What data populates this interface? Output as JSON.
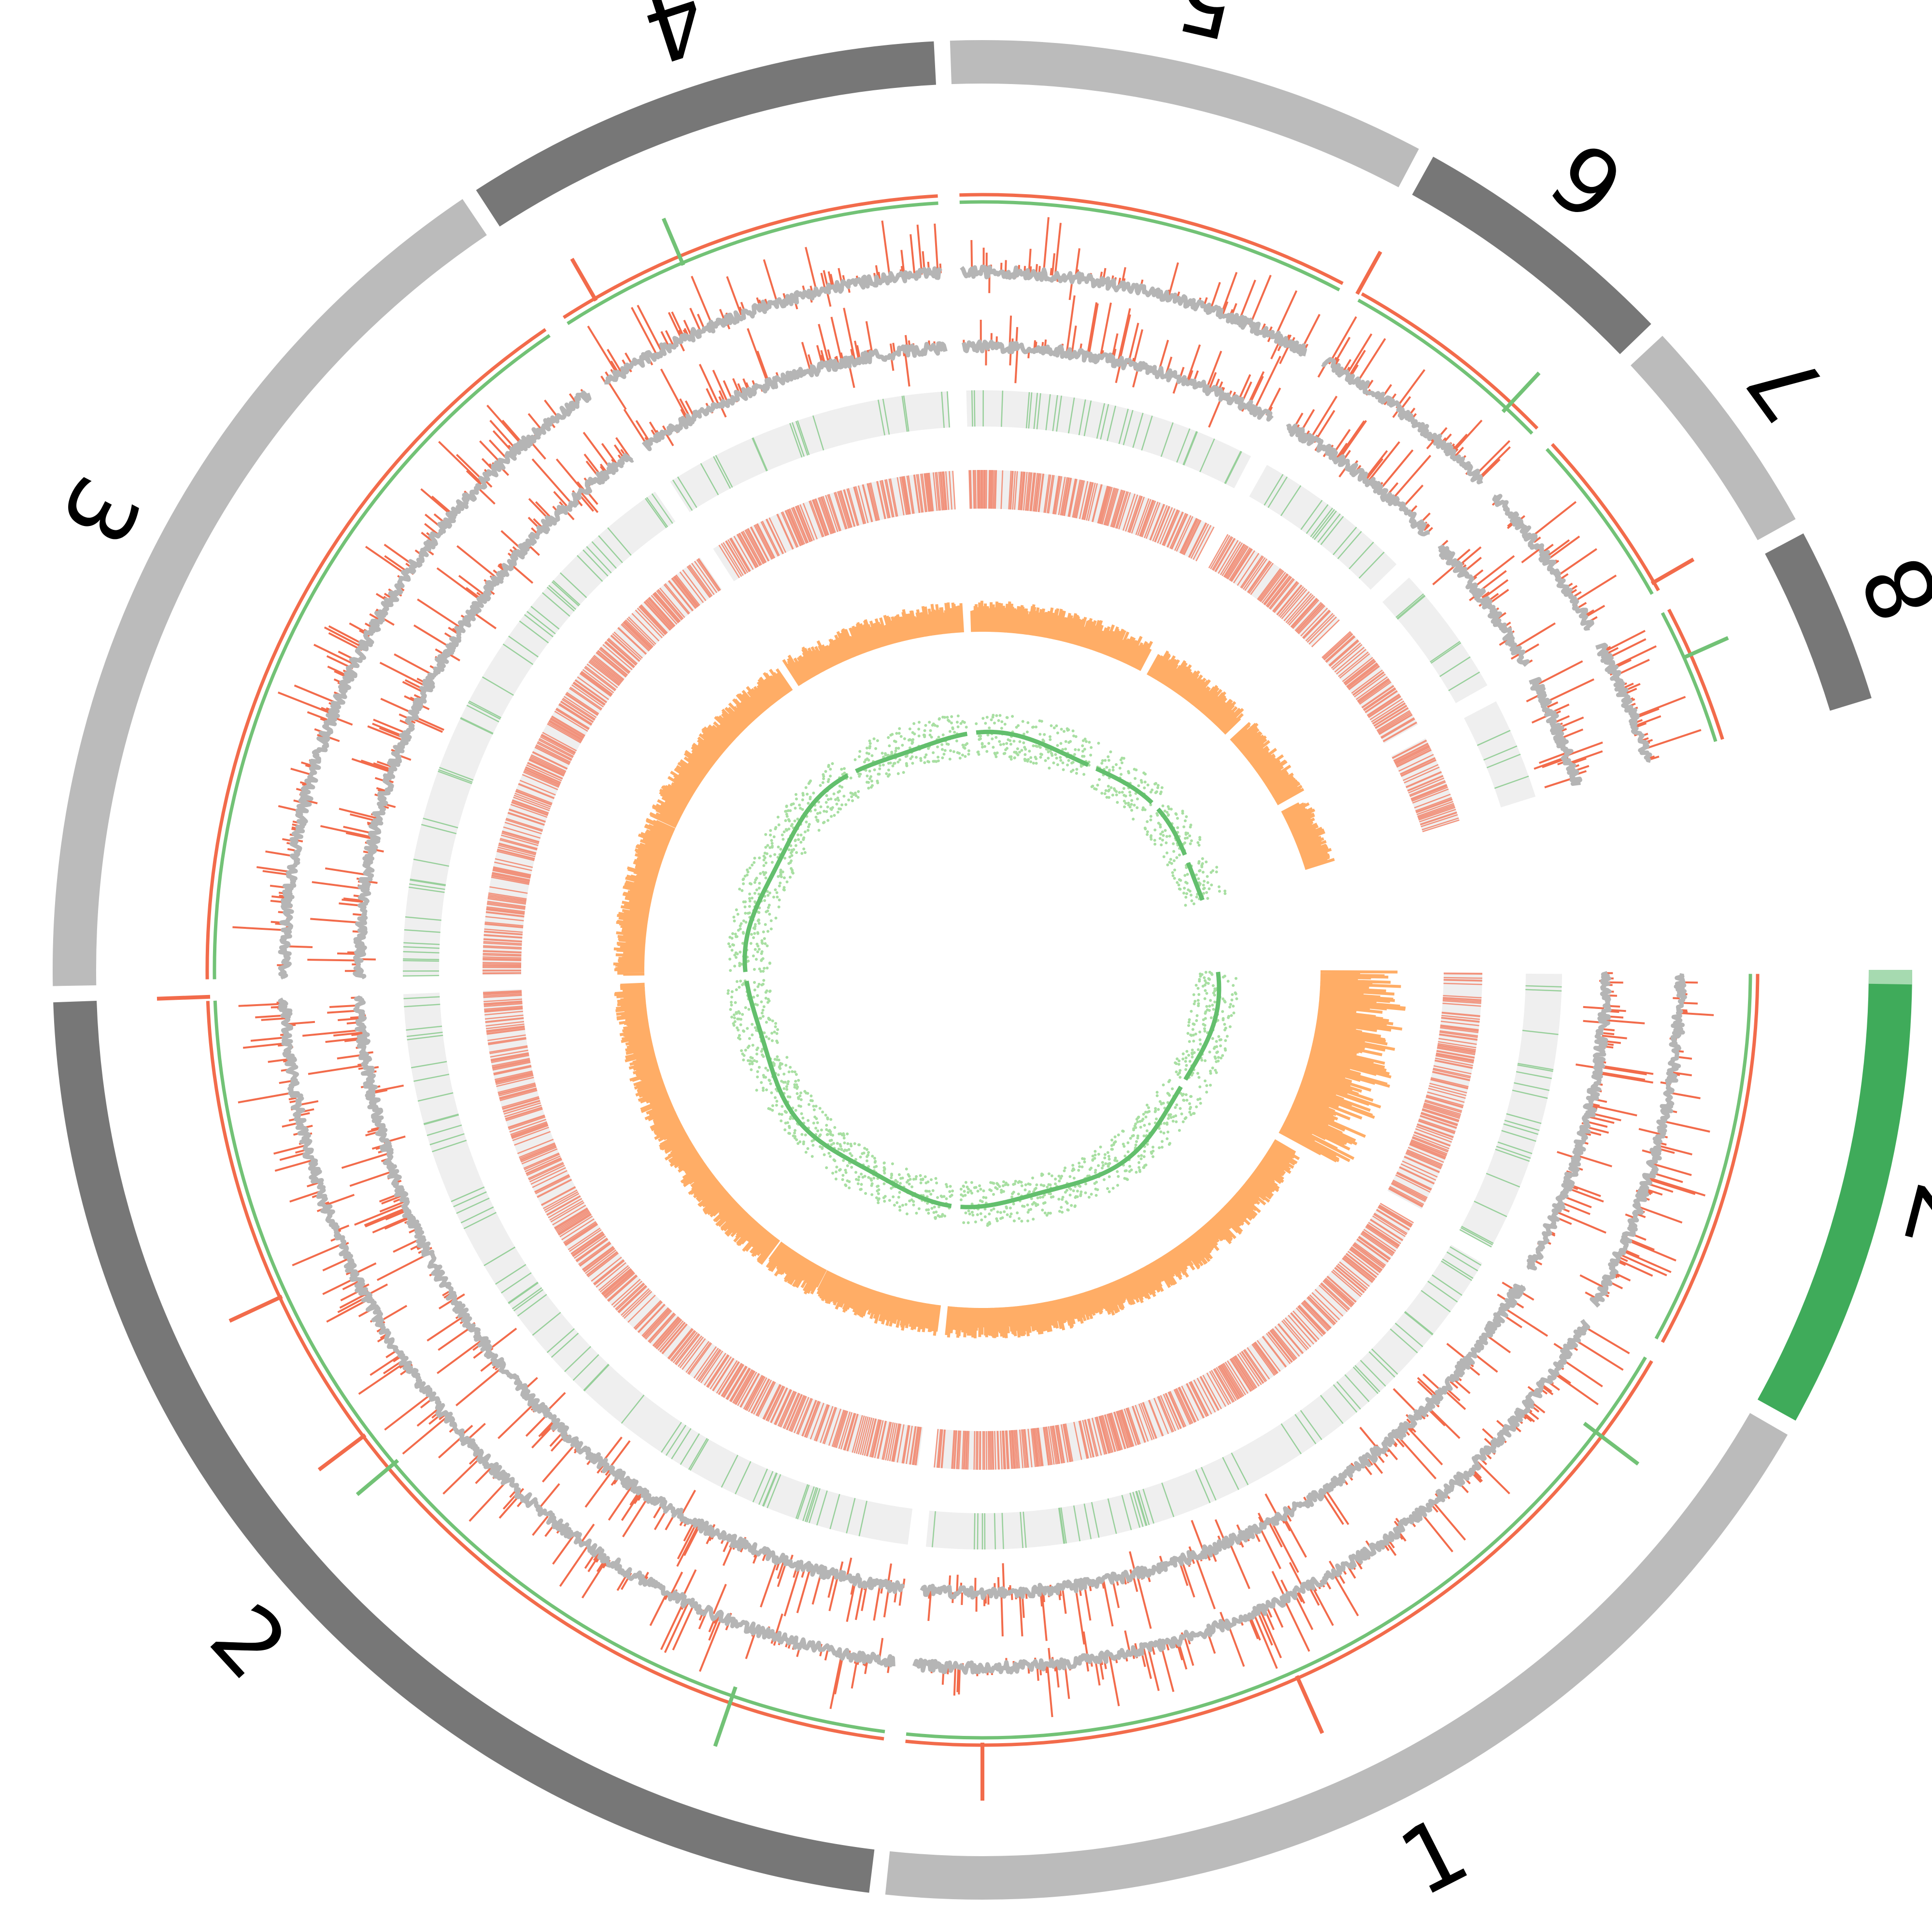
{
  "figure": {
    "type": "circos",
    "colors": {
      "ideogram_dark": "#777777",
      "ideogram_light": "#bbbbbb",
      "ideogram_z": "#3fab5a",
      "ideogram_z_cap": "#a6dab0",
      "red": "#f26b4b",
      "green": "#72c276",
      "grey_line": "#b5b5b5",
      "heat_bg": "#efefef",
      "orange": "#ffad66",
      "green_dots": "#a8dfa2",
      "green_curve": "#63bf6d"
    }
  },
  "chromosomes": [
    {
      "label": "1",
      "shade": "light",
      "start_deg": 120,
      "span_deg": 66
    },
    {
      "label": "2",
      "shade": "dark",
      "start_deg": 187,
      "span_deg": 81
    },
    {
      "label": "3",
      "shade": "light",
      "start_deg": 269,
      "span_deg": 57
    },
    {
      "label": "4",
      "shade": "dark",
      "start_deg": 327,
      "span_deg": 30
    },
    {
      "label": "5",
      "shade": "light",
      "start_deg": 358,
      "span_deg": 30
    },
    {
      "label": "6",
      "shade": "dark",
      "start_deg": 389,
      "span_deg": 17
    },
    {
      "label": "7",
      "shade": "light",
      "start_deg": 407,
      "span_deg": 14
    },
    {
      "label": "8",
      "shade": "dark",
      "start_deg": 422,
      "span_deg": 11
    },
    {
      "label": "Z",
      "shade": "z",
      "start_deg": 90,
      "span_deg": 29
    }
  ]
}
